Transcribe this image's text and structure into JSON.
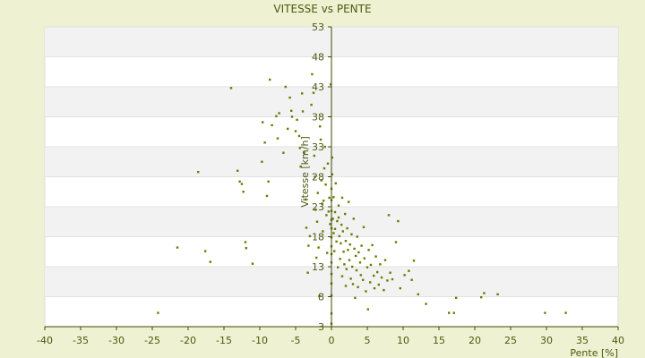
{
  "chart_data": {
    "type": "scatter",
    "title": "VITESSE vs PENTE",
    "xlabel": "Pente [%]",
    "ylabel": "Vitesse [km/h]",
    "xlim": [
      -40,
      40
    ],
    "ylim": [
      3,
      53
    ],
    "xticks": [
      "-40",
      "-35",
      "-30",
      "-25",
      "-20",
      "-15",
      "-10",
      "-5",
      "0",
      "5",
      "10",
      "15",
      "20",
      "25",
      "30",
      "35",
      "40"
    ],
    "yticks": [
      "3",
      "8",
      "13",
      "18",
      "23",
      "28",
      "33",
      "38",
      "43",
      "48",
      "53"
    ],
    "grid": true,
    "legend": "none",
    "colors": {
      "point": "#6b7a00",
      "axis": "#3e4a00",
      "band": "#f2f2f2",
      "background": "#ffffff",
      "page": "#eef2d2"
    },
    "points": [
      [
        -24.2,
        5.3
      ],
      [
        -21.5,
        16.2
      ],
      [
        -18.6,
        28.8
      ],
      [
        -17.6,
        15.6
      ],
      [
        -16.9,
        13.8
      ],
      [
        -14.0,
        42.8
      ],
      [
        -13.1,
        29.0
      ],
      [
        -12.8,
        27.2
      ],
      [
        -12.5,
        26.8
      ],
      [
        -12.3,
        25.5
      ],
      [
        -12.0,
        17.1
      ],
      [
        -11.9,
        16.1
      ],
      [
        -11.0,
        13.5
      ],
      [
        -9.7,
        30.5
      ],
      [
        -9.6,
        37.1
      ],
      [
        -9.3,
        33.7
      ],
      [
        -9.0,
        24.8
      ],
      [
        -8.8,
        27.2
      ],
      [
        -8.6,
        44.2
      ],
      [
        -8.3,
        36.6
      ],
      [
        -7.7,
        38.1
      ],
      [
        -7.5,
        34.4
      ],
      [
        -7.3,
        38.6
      ],
      [
        -6.7,
        32.0
      ],
      [
        -6.4,
        43.0
      ],
      [
        -6.1,
        36.0
      ],
      [
        -5.8,
        41.2
      ],
      [
        -5.6,
        39.0
      ],
      [
        -5.5,
        38.0
      ],
      [
        -5.0,
        35.6
      ],
      [
        -4.8,
        37.5
      ],
      [
        -4.5,
        34.8
      ],
      [
        -4.4,
        32.8
      ],
      [
        -4.3,
        29.7
      ],
      [
        -4.1,
        41.9
      ],
      [
        -4.0,
        38.9
      ],
      [
        -3.8,
        32.0
      ],
      [
        -3.6,
        24.2
      ],
      [
        -3.5,
        19.5
      ],
      [
        -3.3,
        12.0
      ],
      [
        -3.2,
        16.5
      ],
      [
        -3.0,
        18.1
      ],
      [
        -2.8,
        40.0
      ],
      [
        -2.7,
        45.1
      ],
      [
        -2.5,
        42.0
      ],
      [
        -2.4,
        31.5
      ],
      [
        -2.3,
        28.0
      ],
      [
        -2.2,
        22.5
      ],
      [
        -2.1,
        14.5
      ],
      [
        -2.0,
        20.5
      ],
      [
        -1.9,
        25.3
      ],
      [
        -1.8,
        16.2
      ],
      [
        -1.7,
        8.1
      ],
      [
        -1.6,
        36.4
      ],
      [
        -1.5,
        34.2
      ],
      [
        -1.4,
        27.4
      ],
      [
        -1.3,
        23.5
      ],
      [
        -1.2,
        18.9
      ],
      [
        -1.1,
        24.0
      ],
      [
        -1.0,
        29.4
      ],
      [
        -0.9,
        33.0
      ],
      [
        -0.8,
        26.7
      ],
      [
        -0.7,
        21.6
      ],
      [
        -0.6,
        15.3
      ],
      [
        -0.5,
        30.2
      ],
      [
        -0.4,
        22.2
      ],
      [
        -0.3,
        24.5
      ],
      [
        -0.2,
        20.1
      ],
      [
        -0.1,
        43.4
      ],
      [
        0.0,
        3.5
      ],
      [
        0.0,
        5.2
      ],
      [
        0.0,
        8.2
      ],
      [
        0.0,
        10.2
      ],
      [
        0.0,
        11.8
      ],
      [
        0.0,
        13.7
      ],
      [
        0.0,
        15.1
      ],
      [
        0.0,
        16.4
      ],
      [
        0.0,
        17.9
      ],
      [
        0.0,
        19.4
      ],
      [
        0.0,
        20.8
      ],
      [
        0.0,
        22.3
      ],
      [
        0.0,
        24.1
      ],
      [
        0.0,
        26.0
      ],
      [
        0.1,
        28.4
      ],
      [
        0.1,
        31.2
      ],
      [
        0.2,
        21.0
      ],
      [
        0.3,
        18.6
      ],
      [
        0.3,
        24.6
      ],
      [
        0.4,
        15.6
      ],
      [
        0.5,
        22.1
      ],
      [
        0.5,
        19.3
      ],
      [
        0.6,
        26.9
      ],
      [
        0.7,
        17.2
      ],
      [
        0.8,
        20.6
      ],
      [
        0.9,
        12.9
      ],
      [
        1.0,
        23.2
      ],
      [
        1.0,
        21.2
      ],
      [
        1.1,
        18.1
      ],
      [
        1.2,
        14.3
      ],
      [
        1.3,
        16.9
      ],
      [
        1.4,
        20.0
      ],
      [
        1.5,
        11.4
      ],
      [
        1.5,
        24.5
      ],
      [
        1.6,
        18.9
      ],
      [
        1.7,
        15.5
      ],
      [
        1.8,
        13.4
      ],
      [
        1.9,
        21.8
      ],
      [
        2.0,
        17.3
      ],
      [
        2.0,
        9.8
      ],
      [
        2.1,
        12.6
      ],
      [
        2.2,
        19.4
      ],
      [
        2.3,
        15.8
      ],
      [
        2.4,
        23.8
      ],
      [
        2.5,
        14.1
      ],
      [
        2.6,
        16.7
      ],
      [
        2.7,
        11.0
      ],
      [
        2.8,
        18.4
      ],
      [
        2.9,
        13.0
      ],
      [
        3.0,
        10.1
      ],
      [
        3.1,
        21.0
      ],
      [
        3.2,
        16.0
      ],
      [
        3.3,
        7.8
      ],
      [
        3.4,
        14.8
      ],
      [
        3.5,
        12.4
      ],
      [
        3.6,
        18.0
      ],
      [
        3.7,
        9.6
      ],
      [
        3.8,
        15.4
      ],
      [
        4.0,
        13.7
      ],
      [
        4.1,
        11.6
      ],
      [
        4.2,
        16.5
      ],
      [
        4.4,
        10.8
      ],
      [
        4.5,
        19.6
      ],
      [
        4.6,
        14.4
      ],
      [
        4.8,
        8.9
      ],
      [
        5.0,
        12.9
      ],
      [
        5.1,
        5.9
      ],
      [
        5.2,
        15.8
      ],
      [
        5.4,
        10.4
      ],
      [
        5.5,
        13.3
      ],
      [
        5.7,
        16.6
      ],
      [
        5.9,
        11.5
      ],
      [
        6.0,
        9.4
      ],
      [
        6.2,
        14.7
      ],
      [
        6.4,
        12.1
      ],
      [
        6.6,
        10.0
      ],
      [
        6.8,
        13.4
      ],
      [
        7.0,
        11.2
      ],
      [
        7.3,
        9.1
      ],
      [
        7.5,
        14.1
      ],
      [
        7.8,
        10.7
      ],
      [
        8.0,
        21.6
      ],
      [
        8.2,
        12.0
      ],
      [
        8.5,
        10.9
      ],
      [
        9.0,
        17.1
      ],
      [
        9.3,
        20.6
      ],
      [
        9.6,
        9.4
      ],
      [
        10.2,
        11.6
      ],
      [
        10.8,
        12.3
      ],
      [
        11.2,
        10.8
      ],
      [
        11.5,
        14.0
      ],
      [
        12.1,
        8.4
      ],
      [
        13.2,
        6.8
      ],
      [
        16.4,
        5.3
      ],
      [
        17.1,
        5.3
      ],
      [
        17.4,
        7.8
      ],
      [
        20.9,
        7.9
      ],
      [
        21.3,
        8.6
      ],
      [
        23.2,
        8.4
      ],
      [
        29.8,
        5.3
      ],
      [
        32.7,
        5.3
      ]
    ]
  }
}
